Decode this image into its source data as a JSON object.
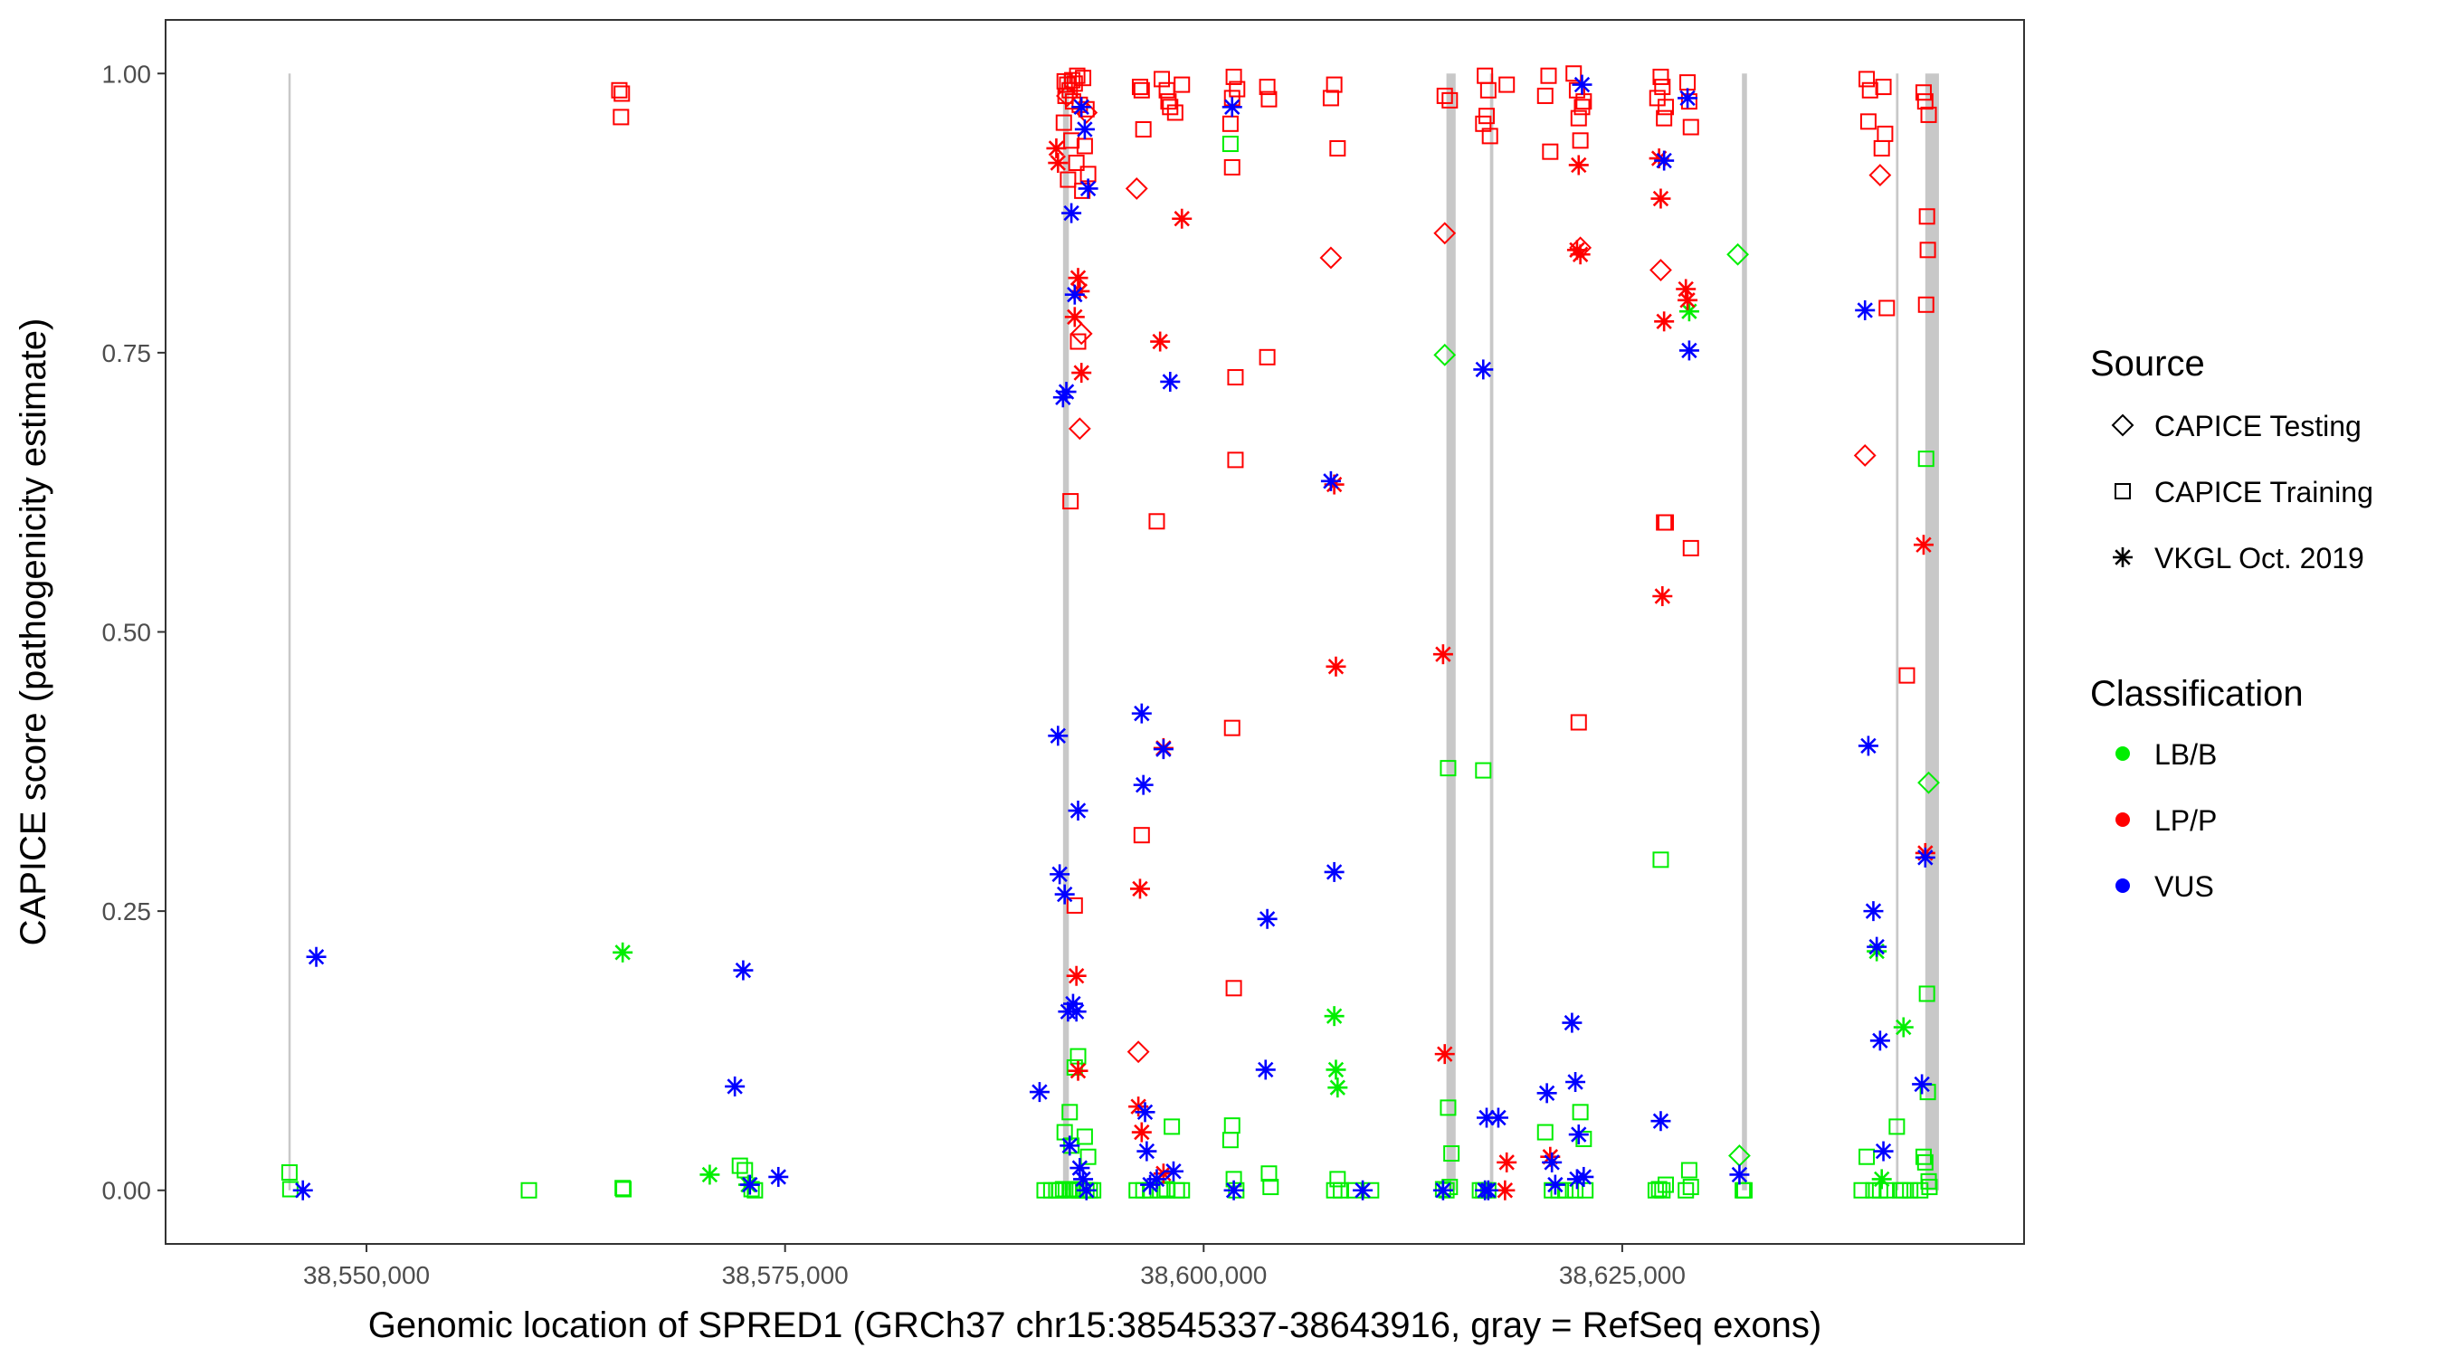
{
  "chart_data": {
    "type": "scatter",
    "title": "",
    "xlabel": "Genomic location of SPRED1 (GRCh37 chr15:38545337-38643916, gray = RefSeq exons)",
    "ylabel": "CAPICE score (pathogenicity estimate)",
    "xlim": [
      38538000,
      38649000
    ],
    "ylim": [
      -0.048,
      1.048
    ],
    "x_ticks": [
      38550000,
      38575000,
      38600000,
      38625000
    ],
    "x_tick_labels": [
      "38,550,000",
      "38,575,000",
      "38,600,000",
      "38,625,000"
    ],
    "y_ticks": [
      0,
      0.25,
      0.5,
      0.75,
      1
    ],
    "y_tick_labels": [
      "0.00",
      "0.25",
      "0.50",
      "0.75",
      "1.00"
    ],
    "grid": false,
    "exons": [
      {
        "start": 38545337,
        "end": 38545437
      },
      {
        "start": 38591600,
        "end": 38591950
      },
      {
        "start": 38614500,
        "end": 38615050
      },
      {
        "start": 38617100,
        "end": 38617300
      },
      {
        "start": 38632150,
        "end": 38632450
      },
      {
        "start": 38641350,
        "end": 38641500
      },
      {
        "start": 38643100,
        "end": 38643916
      }
    ],
    "legend": {
      "source_title": "Source",
      "source_entries": [
        {
          "label": "CAPICE Testing",
          "shape": "diamond"
        },
        {
          "label": "CAPICE Training",
          "shape": "square"
        },
        {
          "label": "VKGL Oct. 2019",
          "shape": "asterisk"
        }
      ],
      "class_title": "Classification",
      "class_entries": [
        {
          "label": "LB/B",
          "color": "#00EE00"
        },
        {
          "label": "LP/P",
          "color": "#FF0000"
        },
        {
          "label": "VUS",
          "color": "#0000FF"
        }
      ]
    },
    "colors": {
      "LB/B": "#00EE00",
      "LP/P": "#FF0000",
      "VUS": "#0000FF"
    },
    "series": [
      {
        "name": "CAPICE Training · LP/P",
        "shape": "square",
        "cls": "LP/P",
        "x": [
          38565100,
          38565250,
          38565200,
          38591700,
          38591850,
          38592000,
          38592150,
          38592300,
          38592450,
          38592600,
          38592800,
          38593000,
          38591650,
          38592100,
          38592400,
          38593100,
          38591900,
          38592500,
          38591750,
          38592200,
          38592900,
          38592300,
          38592750,
          38592050,
          38596400,
          38597500,
          38597800,
          38598300,
          38598000,
          38596200,
          38598700,
          38596300,
          38597900,
          38601800,
          38602000,
          38601700,
          38603800,
          38603900,
          38607800,
          38607600,
          38608000,
          38601600,
          38601700,
          38601900,
          38614400,
          38614700,
          38616800,
          38617000,
          38616900,
          38616700,
          38617100,
          38618100,
          38620600,
          38620400,
          38620700,
          38622100,
          38622300,
          38622600,
          38622700,
          38622400,
          38622500,
          38627300,
          38627400,
          38627100,
          38627600,
          38627500,
          38628900,
          38629000,
          38629100,
          38639600,
          38639800,
          38640600,
          38640700,
          38640500,
          38639700,
          38640800,
          38642000,
          38643000,
          38643100,
          38643300,
          38643200,
          38643250,
          38643150,
          38596300,
          38597200,
          38627500
        ],
        "y": [
          0.985,
          0.982,
          0.961,
          0.993,
          0.99,
          0.985,
          0.994,
          0.991,
          0.998,
          0.972,
          0.996,
          0.968,
          0.956,
          0.94,
          0.92,
          0.91,
          0.905,
          0.76,
          0.98,
          0.975,
          0.935,
          0.255,
          0.895,
          0.617,
          0.95,
          0.995,
          0.985,
          0.965,
          0.97,
          0.988,
          0.99,
          0.985,
          0.975,
          0.997,
          0.986,
          0.978,
          0.988,
          0.977,
          0.99,
          0.978,
          0.933,
          0.955,
          0.916,
          0.728,
          0.98,
          0.976,
          0.998,
          0.985,
          0.962,
          0.955,
          0.944,
          0.99,
          0.998,
          0.98,
          0.93,
          1.0,
          0.985,
          0.97,
          0.975,
          0.96,
          0.94,
          0.997,
          0.988,
          0.978,
          0.97,
          0.96,
          0.992,
          0.975,
          0.952,
          0.995,
          0.985,
          0.988,
          0.946,
          0.933,
          0.957,
          0.79,
          0.461,
          0.983,
          0.975,
          0.963,
          0.872,
          0.842,
          0.793,
          0.318,
          0.599,
          0.598
        ],
        "x2": [
          38601900,
          38603800,
          38601700,
          38601800,
          38622400,
          38627600,
          38629100
        ],
        "y2": [
          0.654,
          0.746,
          0.414,
          0.181,
          0.419,
          0.598,
          0.575
        ]
      },
      {
        "name": "CAPICE Training · LB/B",
        "shape": "square",
        "cls": "LB/B",
        "x": [
          38545400,
          38545450,
          38559700,
          38565300,
          38565350,
          38572300,
          38572600,
          38573000,
          38573200,
          38590500,
          38590900,
          38591200,
          38591400,
          38591600,
          38592000,
          38592200,
          38592400,
          38592600,
          38592800,
          38593000,
          38593200,
          38593400,
          38591700,
          38592000,
          38592100,
          38592300,
          38592500,
          38592900,
          38593100,
          38596000,
          38596400,
          38596800,
          38597400,
          38597800,
          38598100,
          38598400,
          38598700,
          38601600,
          38601700,
          38601800,
          38601950,
          38603900,
          38604000,
          38607800,
          38608000,
          38608200,
          38609000,
          38610000,
          38614300,
          38614500,
          38614600,
          38614700,
          38614800,
          38616500,
          38616700,
          38617000,
          38620400,
          38620800,
          38621200,
          38621600,
          38622200,
          38622500,
          38622700,
          38622800,
          38627000,
          38627200,
          38627400,
          38627600,
          38628800,
          38629000,
          38629100,
          38632200,
          38632300,
          38639300,
          38639600,
          38640000,
          38640400,
          38640800,
          38641400,
          38641600,
          38641800,
          38642200,
          38642800,
          38643000,
          38643100,
          38643300,
          38643200,
          38643150,
          38643250,
          38643350,
          38601600,
          38614600,
          38616700,
          38627300,
          38597800
        ],
        "y": [
          0.016,
          0.001,
          0.0,
          0.002,
          0.001,
          0.022,
          0.018,
          0.001,
          0.0,
          0.0,
          0.0,
          0.0,
          0.0,
          0.001,
          0.0,
          0.0,
          0.001,
          0.0,
          0.0,
          0.0,
          0.0,
          0.0,
          0.052,
          0.07,
          0.04,
          0.11,
          0.12,
          0.048,
          0.03,
          0.0,
          0.0,
          0.0,
          0.0,
          0.0,
          0.057,
          0.0,
          0.0,
          0.045,
          0.058,
          0.01,
          0.0,
          0.015,
          0.003,
          0.0,
          0.01,
          0.0,
          0.0,
          0.0,
          0.001,
          0.0,
          0.074,
          0.003,
          0.033,
          0.0,
          0.0,
          0.0,
          0.052,
          0.0,
          0.0,
          0.0,
          0.0,
          0.07,
          0.046,
          0.0,
          0.0,
          0.001,
          0.0,
          0.005,
          0.0,
          0.018,
          0.003,
          0.0,
          0.0,
          0.0,
          0.03,
          0.0,
          0.0,
          0.0,
          0.057,
          0.0,
          0.0,
          0.0,
          0.0,
          0.03,
          0.025,
          0.008,
          0.176,
          0.655,
          0.088,
          0.003,
          0.937,
          0.378,
          0.376,
          0.296,
          0.001
        ]
      },
      {
        "name": "CAPICE Testing · LP/P",
        "shape": "diamond",
        "cls": "LP/P",
        "x": [
          38593000,
          38592700,
          38592600,
          38596000,
          38596100,
          38607600,
          38614400,
          38622500,
          38627300,
          38640400,
          38639500,
          38591850
        ],
        "y": [
          0.965,
          0.767,
          0.682,
          0.897,
          0.124,
          0.835,
          0.857,
          0.844,
          0.824,
          0.909,
          0.658,
          0.98
        ]
      },
      {
        "name": "CAPICE Testing · LB/B",
        "shape": "diamond",
        "cls": "LB/B",
        "x": [
          38614400,
          38631900,
          38632000,
          38643300
        ],
        "y": [
          0.748,
          0.838,
          0.031,
          0.365
        ]
      },
      {
        "name": "VKGL · LB/B",
        "shape": "asterisk",
        "cls": "LB/B",
        "x": [
          38565300,
          38570500,
          38572800,
          38607800,
          38607900,
          38608000,
          38629000,
          38641800,
          38640200,
          38640500
        ],
        "y": [
          0.213,
          0.014,
          0.005,
          0.156,
          0.108,
          0.092,
          0.787,
          0.146,
          0.214,
          0.01
        ]
      },
      {
        "name": "VKGL · LP/P",
        "shape": "asterisk",
        "cls": "LP/P",
        "x": [
          38591200,
          38591300,
          38592500,
          38592600,
          38592700,
          38592300,
          38592400,
          38592500,
          38596200,
          38596100,
          38597400,
          38597600,
          38598700,
          38607900,
          38607800,
          38614300,
          38614400,
          38618000,
          38620700,
          38622400,
          38622500,
          38622300,
          38627300,
          38627500,
          38627400,
          38627200,
          38628800,
          38628900,
          38643000,
          38643100,
          38596300,
          38597600,
          38618100
        ],
        "y": [
          0.933,
          0.92,
          0.817,
          0.805,
          0.732,
          0.782,
          0.192,
          0.107,
          0.27,
          0.075,
          0.76,
          0.396,
          0.87,
          0.469,
          0.632,
          0.48,
          0.122,
          0.0,
          0.03,
          0.918,
          0.838,
          0.842,
          0.888,
          0.778,
          0.532,
          0.924,
          0.807,
          0.797,
          0.578,
          0.302,
          0.052,
          0.015,
          0.025
        ]
      },
      {
        "name": "VKGL · VUS",
        "shape": "asterisk",
        "cls": "VUS",
        "x": [
          38547000,
          38546200,
          38572500,
          38572000,
          38572900,
          38574600,
          38591300,
          38591400,
          38591600,
          38591700,
          38591900,
          38592100,
          38592300,
          38592500,
          38592700,
          38592900,
          38593100,
          38590200,
          38591800,
          38592000,
          38592200,
          38592400,
          38592600,
          38592800,
          38593000,
          38596300,
          38596400,
          38596500,
          38596600,
          38596800,
          38597200,
          38597600,
          38598000,
          38598200,
          38601700,
          38601800,
          38603800,
          38603700,
          38607600,
          38607800,
          38609500,
          38614300,
          38616700,
          38616900,
          38617600,
          38617000,
          38620500,
          38620800,
          38621000,
          38622000,
          38622200,
          38622400,
          38622600,
          38622700,
          38627300,
          38627500,
          38628900,
          38629000,
          38639500,
          38639700,
          38640000,
          38640200,
          38640400,
          38640600,
          38642900,
          38643100,
          38632000,
          38622300,
          38616800
        ],
        "y": [
          0.209,
          0.0,
          0.197,
          0.093,
          0.005,
          0.012,
          0.407,
          0.283,
          0.71,
          0.265,
          0.16,
          0.875,
          0.802,
          0.34,
          0.97,
          0.95,
          0.897,
          0.088,
          0.715,
          0.04,
          0.167,
          0.16,
          0.02,
          0.01,
          0.0,
          0.427,
          0.363,
          0.07,
          0.035,
          0.005,
          0.01,
          0.395,
          0.724,
          0.017,
          0.97,
          0.0,
          0.243,
          0.108,
          0.635,
          0.285,
          0.0,
          0.0,
          0.735,
          0.065,
          0.065,
          0.0,
          0.087,
          0.025,
          0.005,
          0.15,
          0.097,
          0.05,
          0.99,
          0.012,
          0.062,
          0.922,
          0.978,
          0.752,
          0.788,
          0.398,
          0.25,
          0.218,
          0.134,
          0.035,
          0.095,
          0.298,
          0.014,
          0.01,
          0.0
        ]
      }
    ]
  }
}
